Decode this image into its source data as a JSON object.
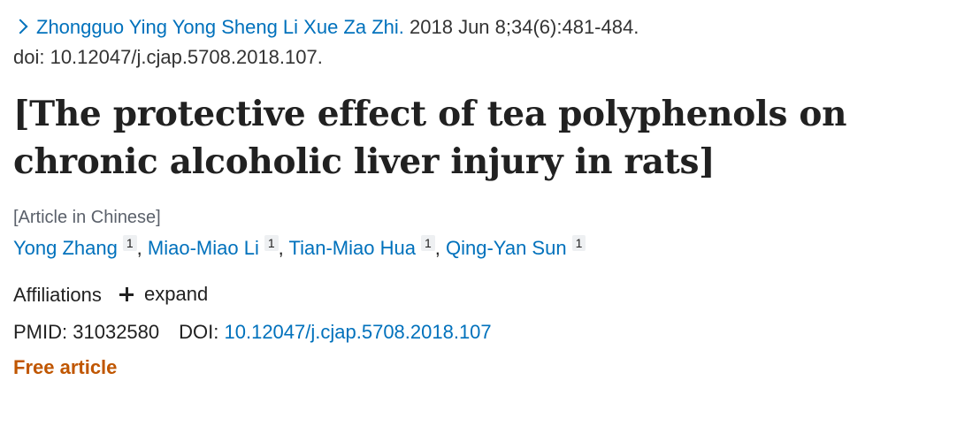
{
  "citation": {
    "journal": "Zhongguo Ying Yong Sheng Li Xue Za Zhi.",
    "date_pages": "2018 Jun 8;34(6):481-484.",
    "doi_line": "doi: 10.12047/j.cjap.5708.2018.107."
  },
  "title": "[The protective effect of tea polyphenols on chronic alcoholic liver injury in rats]",
  "language_note": "[Article in Chinese]",
  "authors": [
    {
      "name": "Yong Zhang",
      "aff": "1"
    },
    {
      "name": "Miao-Miao Li",
      "aff": "1"
    },
    {
      "name": "Tian-Miao Hua",
      "aff": "1"
    },
    {
      "name": "Qing-Yan Sun",
      "aff": "1"
    }
  ],
  "author_separator": ",",
  "affiliations": {
    "label": "Affiliations",
    "expand_label": "expand"
  },
  "identifiers": {
    "pmid_label": "PMID:",
    "pmid": "31032580",
    "doi_label": "DOI:",
    "doi": "10.12047/j.cjap.5708.2018.107"
  },
  "free_article": "Free article",
  "icons": {
    "journal_chevron": "chevron-right-icon",
    "expand": "plus-icon"
  },
  "colors": {
    "link": "#0071bc",
    "free_article": "#c05600",
    "text": "#212121"
  }
}
